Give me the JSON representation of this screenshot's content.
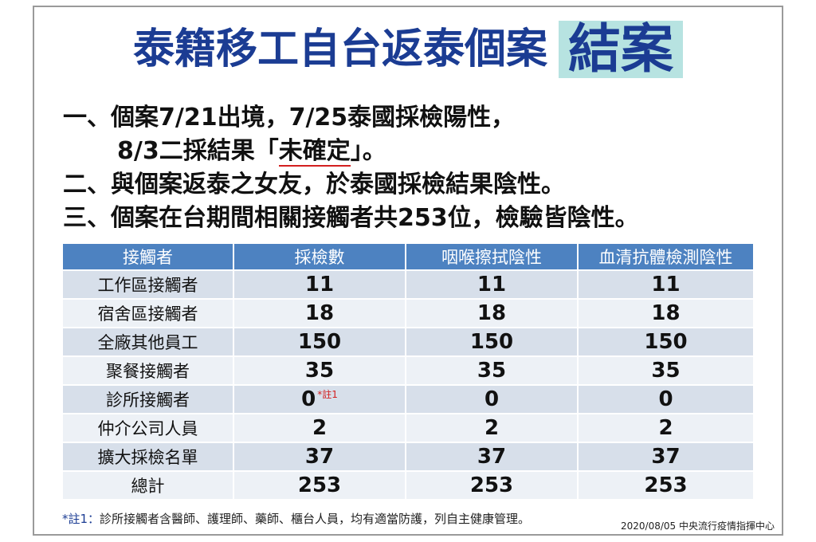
{
  "title": {
    "main": "泰籍移工自台返泰個案",
    "highlight": "結案"
  },
  "points": [
    {
      "label": "一、個案7/21出境，7/25泰國採檢陽性，"
    },
    {
      "label_pre": "8/3二採結果「",
      "label_underline": "未確定",
      "label_post": "」。"
    },
    {
      "label": "二、與個案返泰之女友，於泰國採檢結果陰性。"
    },
    {
      "label": "三、個案在台期間相關接觸者共253位，檢驗皆陰性。"
    }
  ],
  "table": {
    "headers": [
      "接觸者",
      "採檢數",
      "咽喉擦拭陰性",
      "血清抗體檢測陰性"
    ],
    "rows": [
      {
        "name": "工作區接觸者",
        "samples": "11",
        "throat": "11",
        "serum": "11"
      },
      {
        "name": "宿舍區接觸者",
        "samples": "18",
        "throat": "18",
        "serum": "18"
      },
      {
        "name": "全廠其他員工",
        "samples": "150",
        "throat": "150",
        "serum": "150"
      },
      {
        "name": "聚餐接觸者",
        "samples": "35",
        "throat": "35",
        "serum": "35"
      },
      {
        "name": "診所接觸者",
        "samples": "0",
        "note": "*註1",
        "throat": "0",
        "serum": "0"
      },
      {
        "name": "仲介公司人員",
        "samples": "2",
        "throat": "2",
        "serum": "2"
      },
      {
        "name": "擴大採檢名單",
        "samples": "37",
        "throat": "37",
        "serum": "37"
      },
      {
        "name": "總計",
        "samples": "253",
        "throat": "253",
        "serum": "253"
      }
    ]
  },
  "footnote": {
    "marker": "*註1：",
    "text": "診所接觸者含醫師、護理師、藥師、櫃台人員，均有適當防護，列自主健康管理。"
  },
  "source": "2020/08/05 中央流行疫情指揮中心",
  "colors": {
    "title": "#1b3c93",
    "title_highlight_bg": "#b7e3e1",
    "header_bg": "#4d82c1",
    "row_dark": "#d7dfea",
    "row_light": "#edf1f6",
    "note_red": "#d31f1f"
  }
}
